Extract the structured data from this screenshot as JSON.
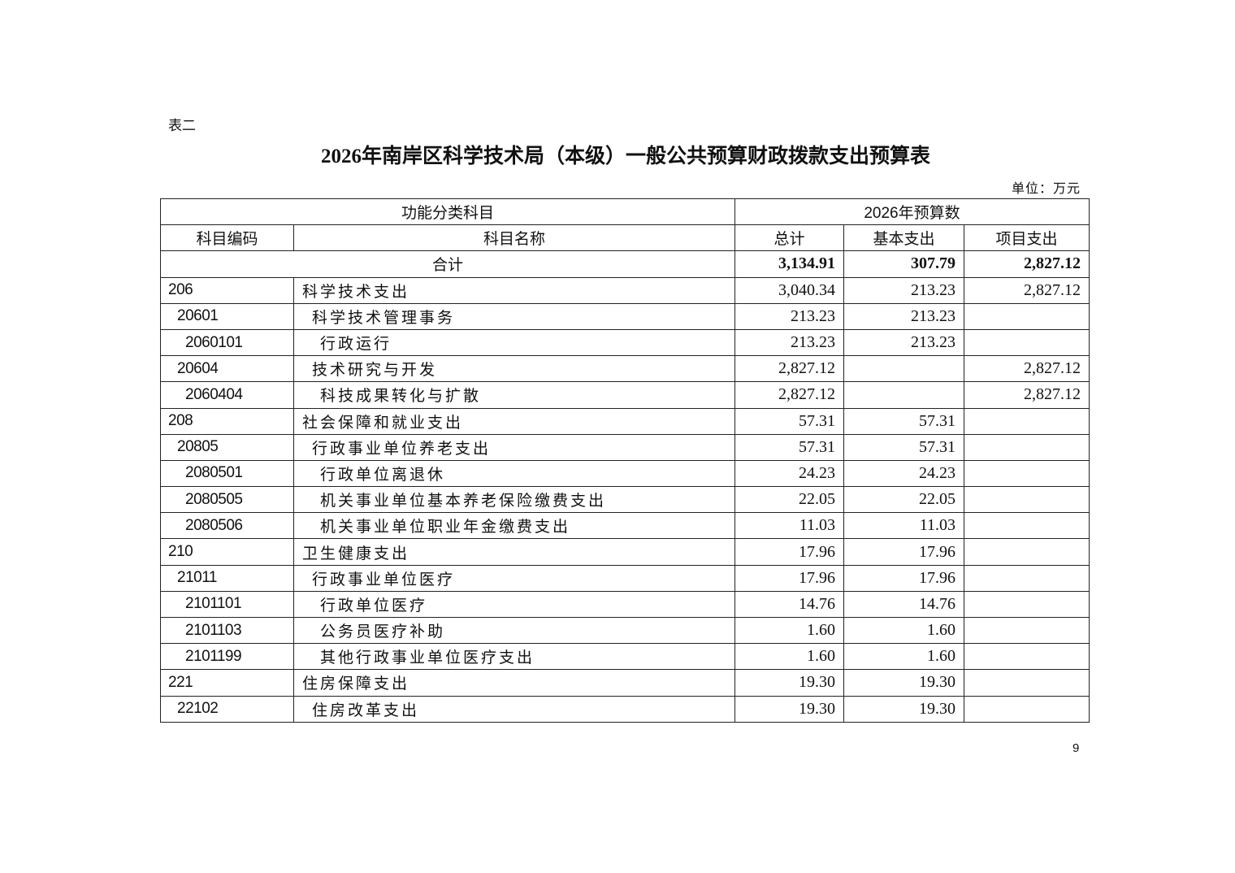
{
  "doc": {
    "table_label": "表二",
    "title": "2026年南岸区科学技术局（本级）一般公共预算财政拨款支出预算表",
    "unit": "单位：万元",
    "page_number": "9"
  },
  "table": {
    "header_group_left": "功能分类科目",
    "header_group_right": "2026年预算数",
    "columns": [
      "科目编码",
      "科目名称",
      "总计",
      "基本支出",
      "项目支出"
    ],
    "total_row": {
      "label": "合计",
      "total": "3,134.91",
      "basic": "307.79",
      "project": "2,827.12"
    },
    "rows": [
      {
        "level": 0,
        "code": "206",
        "name": "科学技术支出",
        "total": "3,040.34",
        "basic": "213.23",
        "project": "2,827.12"
      },
      {
        "level": 1,
        "code": "20601",
        "name": "科学技术管理事务",
        "total": "213.23",
        "basic": "213.23",
        "project": ""
      },
      {
        "level": 2,
        "code": "2060101",
        "name": "行政运行",
        "total": "213.23",
        "basic": "213.23",
        "project": ""
      },
      {
        "level": 1,
        "code": "20604",
        "name": "技术研究与开发",
        "total": "2,827.12",
        "basic": "",
        "project": "2,827.12"
      },
      {
        "level": 2,
        "code": "2060404",
        "name": "科技成果转化与扩散",
        "total": "2,827.12",
        "basic": "",
        "project": "2,827.12"
      },
      {
        "level": 0,
        "code": "208",
        "name": "社会保障和就业支出",
        "total": "57.31",
        "basic": "57.31",
        "project": ""
      },
      {
        "level": 1,
        "code": "20805",
        "name": "行政事业单位养老支出",
        "total": "57.31",
        "basic": "57.31",
        "project": ""
      },
      {
        "level": 2,
        "code": "2080501",
        "name": "行政单位离退休",
        "total": "24.23",
        "basic": "24.23",
        "project": ""
      },
      {
        "level": 2,
        "code": "2080505",
        "name": "机关事业单位基本养老保险缴费支出",
        "total": "22.05",
        "basic": "22.05",
        "project": ""
      },
      {
        "level": 2,
        "code": "2080506",
        "name": "机关事业单位职业年金缴费支出",
        "total": "11.03",
        "basic": "11.03",
        "project": ""
      },
      {
        "level": 0,
        "code": "210",
        "name": "卫生健康支出",
        "total": "17.96",
        "basic": "17.96",
        "project": ""
      },
      {
        "level": 1,
        "code": "21011",
        "name": "行政事业单位医疗",
        "total": "17.96",
        "basic": "17.96",
        "project": ""
      },
      {
        "level": 2,
        "code": "2101101",
        "name": "行政单位医疗",
        "total": "14.76",
        "basic": "14.76",
        "project": ""
      },
      {
        "level": 2,
        "code": "2101103",
        "name": "公务员医疗补助",
        "total": "1.60",
        "basic": "1.60",
        "project": ""
      },
      {
        "level": 2,
        "code": "2101199",
        "name": "其他行政事业单位医疗支出",
        "total": "1.60",
        "basic": "1.60",
        "project": ""
      },
      {
        "level": 0,
        "code": "221",
        "name": "住房保障支出",
        "total": "19.30",
        "basic": "19.30",
        "project": ""
      },
      {
        "level": 1,
        "code": "22102",
        "name": "住房改革支出",
        "total": "19.30",
        "basic": "19.30",
        "project": ""
      }
    ]
  }
}
